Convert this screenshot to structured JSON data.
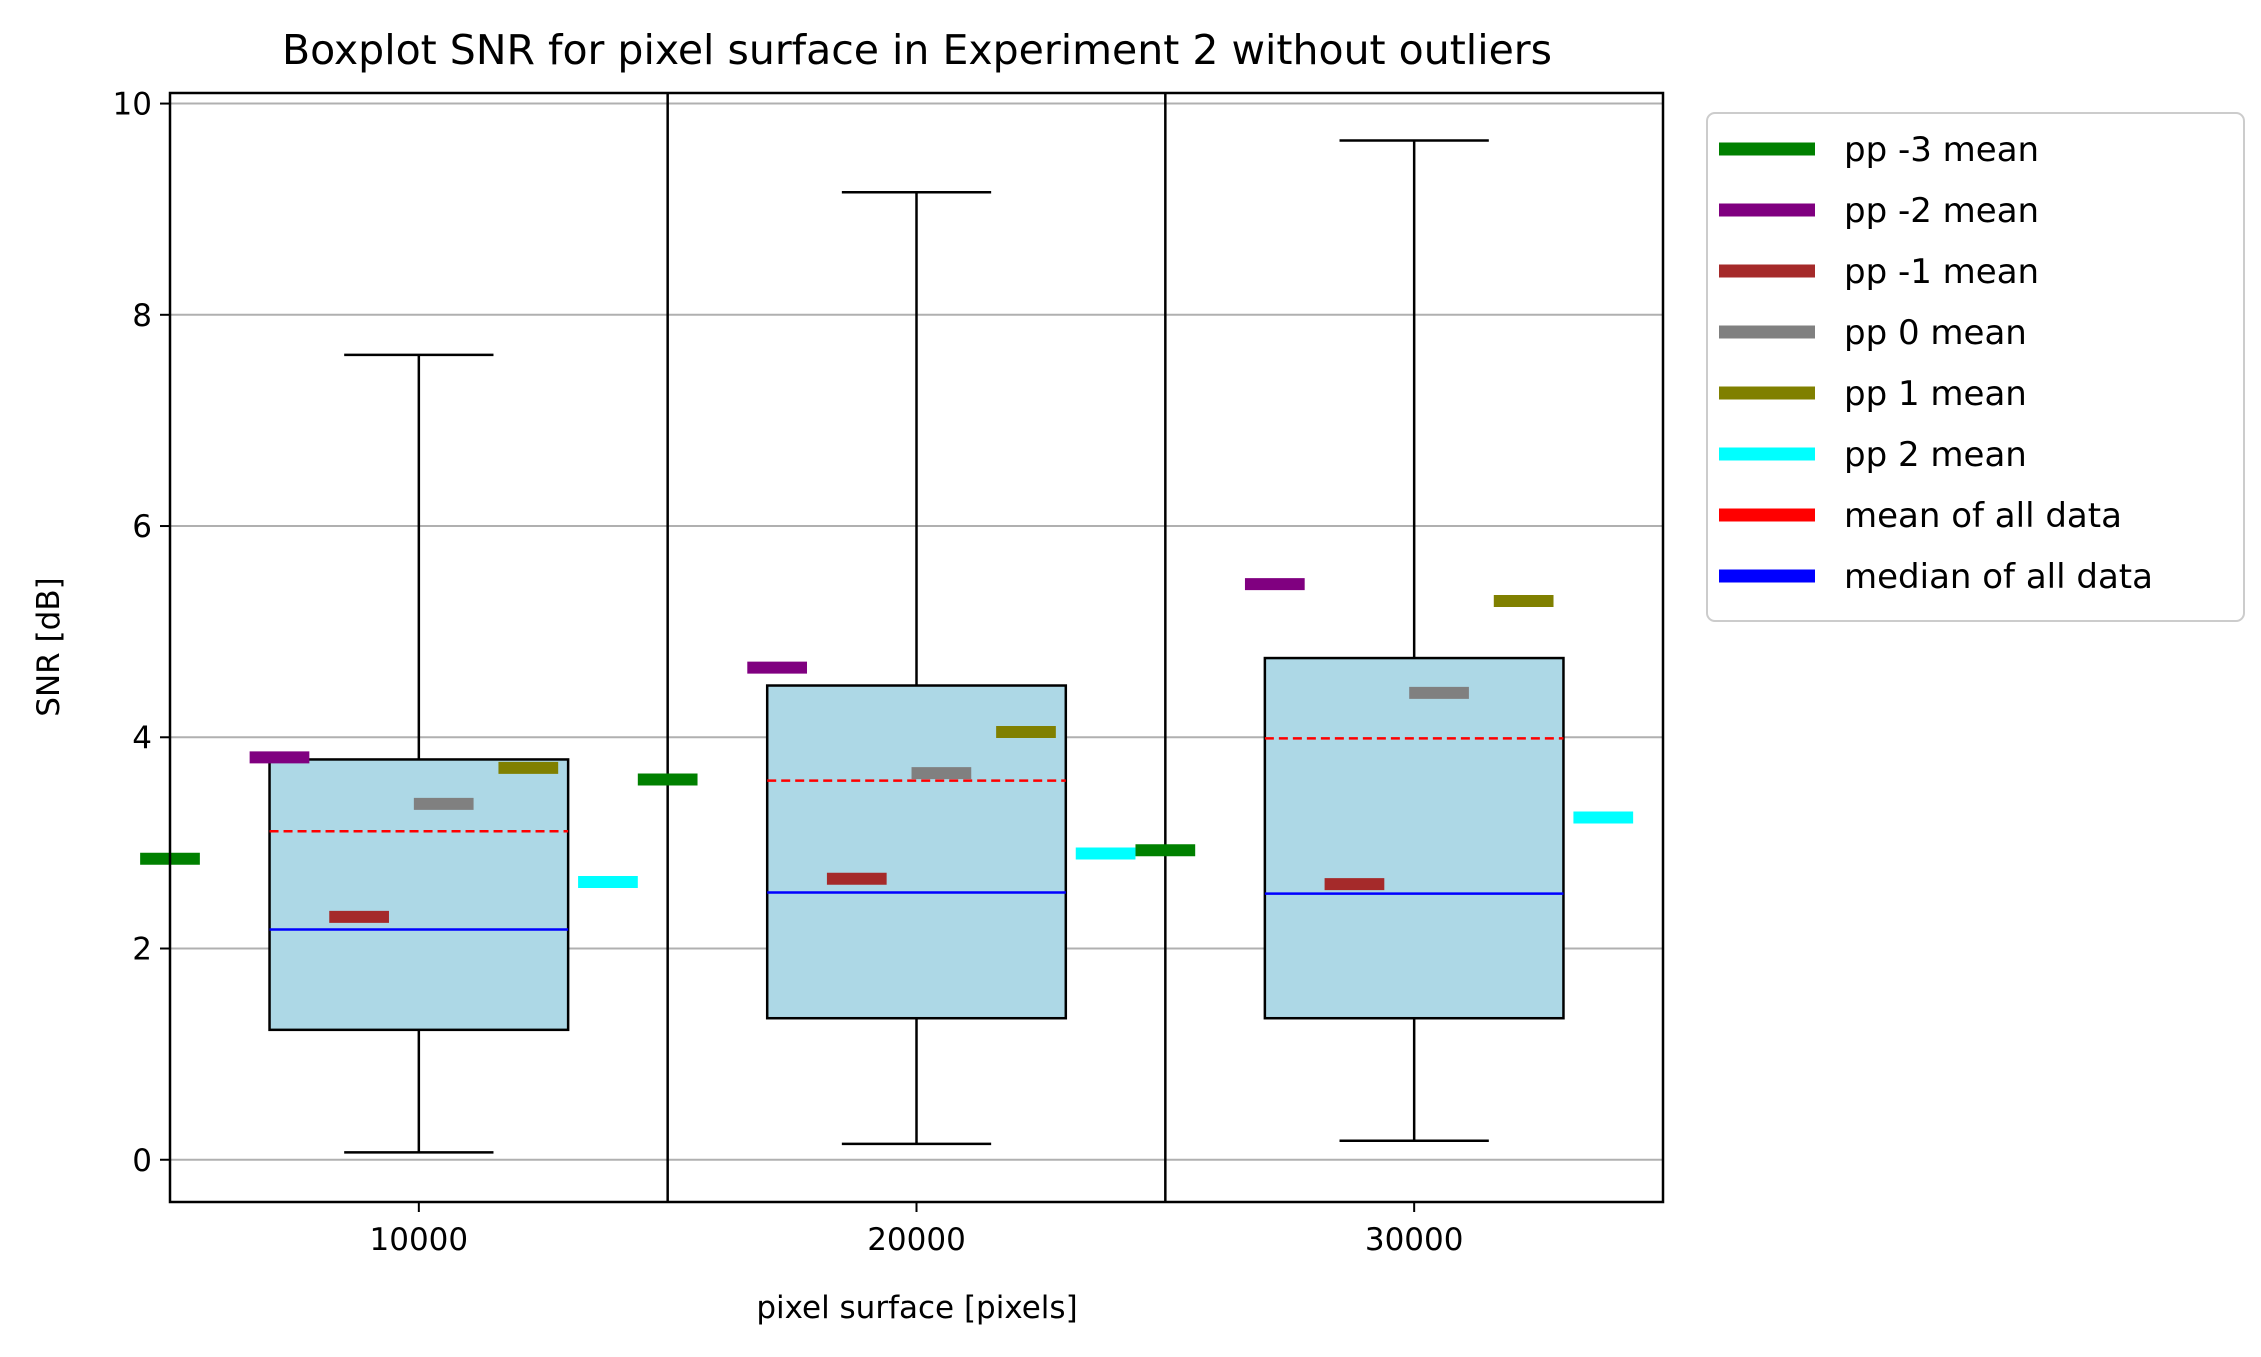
{
  "chart_data": {
    "type": "boxplot",
    "title": "Boxplot SNR for pixel surface in Experiment 2 without outliers",
    "xlabel": "pixel surface [pixels]",
    "ylabel": "SNR [dB]",
    "ylim": [
      -0.4,
      10.1
    ],
    "yticks": [
      "0",
      "2",
      "4",
      "6",
      "8",
      "10"
    ],
    "grid": "y",
    "legend_position": "outside-right",
    "categories": [
      "10000",
      "20000",
      "30000"
    ],
    "boxes": [
      {
        "category": "10000",
        "whisker_low": 0.07,
        "q1": 1.23,
        "median": 2.18,
        "mean": 3.11,
        "q3": 3.79,
        "whisker_high": 7.62
      },
      {
        "category": "20000",
        "whisker_low": 0.15,
        "q1": 1.34,
        "median": 2.53,
        "mean": 3.59,
        "q3": 4.49,
        "whisker_high": 9.16
      },
      {
        "category": "30000",
        "whisker_low": 0.18,
        "q1": 1.34,
        "median": 2.52,
        "mean": 3.99,
        "q3": 4.75,
        "whisker_high": 9.65
      }
    ],
    "series": [
      {
        "name": "pp -3 mean",
        "color": "#008000",
        "values": [
          2.85,
          3.6,
          2.93
        ]
      },
      {
        "name": "pp -2 mean",
        "color": "#800080",
        "values": [
          3.81,
          4.66,
          5.45
        ]
      },
      {
        "name": "pp -1 mean",
        "color": "#a52a2a",
        "values": [
          2.3,
          2.66,
          2.61
        ]
      },
      {
        "name": "pp 0 mean",
        "color": "#808080",
        "values": [
          3.37,
          3.66,
          4.42
        ]
      },
      {
        "name": "pp 1 mean",
        "color": "#808000",
        "values": [
          3.71,
          4.05,
          5.29
        ]
      },
      {
        "name": "pp 2 mean",
        "color": "#00ffff",
        "values": [
          2.63,
          2.9,
          3.24
        ]
      },
      {
        "name": "mean of all data",
        "color": "#ff0000"
      },
      {
        "name": "median of all data",
        "color": "#0000ff"
      }
    ],
    "box_fill": "#add8e6"
  }
}
